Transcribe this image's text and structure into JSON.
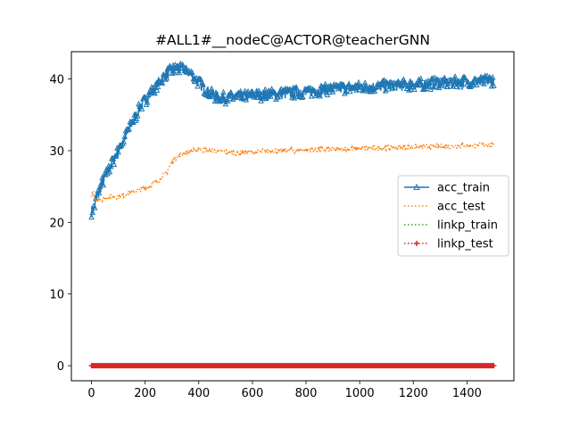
{
  "chart_data": {
    "type": "line",
    "title": "#ALL1#__nodeC@ACTOR@teacherGNN",
    "xlabel": "",
    "ylabel": "",
    "xlim": [
      -75,
      1575
    ],
    "ylim": [
      -2.1,
      43.8
    ],
    "x_ticks": [
      0,
      200,
      400,
      600,
      800,
      1000,
      1200,
      1400
    ],
    "y_ticks": [
      0,
      10,
      20,
      30,
      40
    ],
    "x_tick_labels": [
      "0",
      "200",
      "400",
      "600",
      "800",
      "1000",
      "1200",
      "1400"
    ],
    "y_tick_labels": [
      "0",
      "10",
      "20",
      "30",
      "40"
    ],
    "grid": false,
    "legend_position": "center-right",
    "series": [
      {
        "name": "acc_train",
        "color": "#1f77b4",
        "line_style": "solid",
        "marker": "tri_up",
        "x": [
          0,
          10,
          20,
          40,
          60,
          80,
          100,
          120,
          140,
          160,
          180,
          200,
          220,
          240,
          260,
          280,
          300,
          320,
          340,
          360,
          380,
          400,
          420,
          440,
          460,
          480,
          500,
          550,
          600,
          650,
          700,
          750,
          800,
          850,
          900,
          950,
          1000,
          1050,
          1100,
          1150,
          1200,
          1250,
          1300,
          1350,
          1400,
          1450,
          1500
        ],
        "y": [
          21.5,
          22.0,
          23.5,
          25.5,
          27.0,
          28.5,
          30.0,
          31.5,
          33.0,
          34.5,
          36.0,
          37.0,
          38.0,
          39.0,
          40.0,
          40.7,
          41.2,
          41.4,
          41.3,
          41.0,
          40.3,
          39.5,
          38.7,
          38.0,
          37.6,
          37.4,
          37.3,
          37.5,
          37.6,
          37.8,
          37.9,
          38.0,
          38.2,
          38.4,
          38.6,
          38.7,
          38.8,
          38.9,
          39.0,
          39.1,
          39.2,
          39.3,
          39.4,
          39.5,
          39.6,
          39.7,
          39.8
        ],
        "noise": 0.8
      },
      {
        "name": "acc_test",
        "color": "#ff7f0e",
        "line_style": "dotted",
        "marker": "",
        "x": [
          0,
          5,
          10,
          20,
          40,
          60,
          100,
          150,
          200,
          250,
          280,
          300,
          320,
          340,
          360,
          380,
          400,
          450,
          500,
          550,
          600,
          700,
          800,
          900,
          1000,
          1100,
          1200,
          1300,
          1400,
          1500
        ],
        "y": [
          23.5,
          24.3,
          23.0,
          23.2,
          23.3,
          23.5,
          23.6,
          24.2,
          24.8,
          25.8,
          27.0,
          28.5,
          29.2,
          29.6,
          29.8,
          30.0,
          30.2,
          30.0,
          29.8,
          29.7,
          29.8,
          30.0,
          30.1,
          30.2,
          30.3,
          30.4,
          30.5,
          30.6,
          30.7,
          30.8
        ],
        "noise": 0.35
      },
      {
        "name": "linkp_train",
        "color": "#2ca02c",
        "line_style": "dotted",
        "marker": "",
        "x": [
          0,
          1500
        ],
        "y": [
          0,
          0
        ],
        "noise": 0
      },
      {
        "name": "linkp_test",
        "color": "#d62728",
        "line_style": "dotted",
        "marker": "plus",
        "x": [
          0,
          1500
        ],
        "y": [
          0,
          0
        ],
        "noise": 0
      }
    ]
  }
}
